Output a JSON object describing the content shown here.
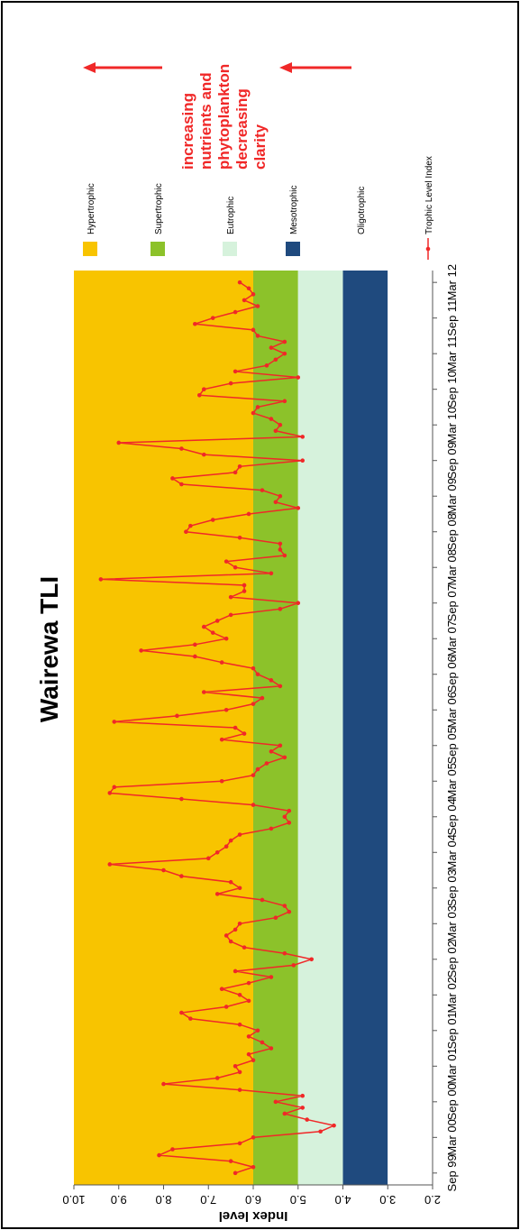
{
  "chart_data": {
    "type": "line",
    "title": "Wairewa TLI",
    "y_label": "Index level",
    "x": [
      "Sep 99",
      "Oct 99",
      "Nov 99",
      "Dec 99",
      "Jan 00",
      "Feb 00",
      "Mar 00",
      "Apr 00",
      "May 00",
      "Jun 00",
      "Jul 00",
      "Aug 00",
      "Sep 00",
      "Oct 00",
      "Nov 00",
      "Dec 00",
      "Jan 01",
      "Feb 01",
      "Mar 01",
      "Apr 01",
      "May 01",
      "Jun 01",
      "Jul 01",
      "Aug 01",
      "Sep 01",
      "Oct 01",
      "Nov 01",
      "Dec 01",
      "Jan 02",
      "Feb 02",
      "Mar 02",
      "Apr 02",
      "May 02",
      "Jun 02",
      "Jul 02",
      "Aug 02",
      "Sep 02",
      "Oct 02",
      "Nov 02",
      "Dec 02",
      "Jan 03",
      "Feb 03",
      "Mar 03",
      "Apr 03",
      "May 03",
      "Jun 03",
      "Jul 03",
      "Aug 03",
      "Sep 03",
      "Oct 03",
      "Nov 03",
      "Dec 03",
      "Jan 04",
      "Feb 04",
      "Mar 04",
      "Apr 04",
      "May 04",
      "Jun 04",
      "Jul 04",
      "Aug 04",
      "Sep 04",
      "Oct 04",
      "Nov 04",
      "Dec 04",
      "Jan 05",
      "Feb 05",
      "Mar 05",
      "Apr 05",
      "May 05",
      "Jun 05",
      "Jul 05",
      "Aug 05",
      "Sep 05",
      "Oct 05",
      "Nov 05",
      "Dec 05",
      "Jan 06",
      "Feb 06",
      "Mar 06",
      "Apr 06",
      "May 06",
      "Jun 06",
      "Jul 06",
      "Aug 06",
      "Sep 06",
      "Oct 06",
      "Nov 06",
      "Dec 06",
      "Jan 07",
      "Feb 07",
      "Mar 07",
      "Apr 07",
      "May 07",
      "Jun 07",
      "Jul 07",
      "Aug 07",
      "Sep 07",
      "Oct 07",
      "Nov 07",
      "Dec 07",
      "Jan 08",
      "Feb 08",
      "Mar 08",
      "Apr 08",
      "May 08",
      "Jun 08",
      "Jul 08",
      "Aug 08",
      "Sep 08",
      "Oct 08",
      "Nov 08",
      "Dec 08",
      "Jan 09",
      "Feb 09",
      "Mar 09",
      "Apr 09",
      "May 09",
      "Jun 09",
      "Jul 09",
      "Aug 09",
      "Sep 09",
      "Oct 09",
      "Nov 09",
      "Dec 09",
      "Jan 10",
      "Feb 10",
      "Mar 10",
      "Apr 10",
      "May 10",
      "Jun 10",
      "Jul 10",
      "Aug 10",
      "Sep 10",
      "Oct 10",
      "Nov 10",
      "Dec 10",
      "Jan 11",
      "Feb 11",
      "Mar 11",
      "Apr 11",
      "May 11",
      "Jun 11",
      "Jul 11",
      "Aug 11",
      "Sep 11",
      "Oct 11",
      "Nov 11",
      "Dec 11",
      "Jan 12",
      "Feb 12",
      "Mar 12"
    ],
    "series": [
      {
        "name": "Trophic Level Index",
        "color": "#f02828",
        "values": [
          6.4,
          6.0,
          6.5,
          8.1,
          7.8,
          6.3,
          6.0,
          4.5,
          4.2,
          4.8,
          5.3,
          4.9,
          5.5,
          4.9,
          6.3,
          8.0,
          6.8,
          6.3,
          6.4,
          6.0,
          6.1,
          5.6,
          5.8,
          6.1,
          5.9,
          6.3,
          7.4,
          7.6,
          6.6,
          6.1,
          6.3,
          6.7,
          6.1,
          5.6,
          6.4,
          5.1,
          4.7,
          5.3,
          6.2,
          6.5,
          6.6,
          6.4,
          6.3,
          5.5,
          5.2,
          5.3,
          5.8,
          6.8,
          6.3,
          6.5,
          7.6,
          8.0,
          9.2,
          7.0,
          6.8,
          6.6,
          6.5,
          6.3,
          5.6,
          5.2,
          5.3,
          5.2,
          6.0,
          7.6,
          9.2,
          9.1,
          6.7,
          6.0,
          5.9,
          5.7,
          5.3,
          5.6,
          5.4,
          6.7,
          6.2,
          6.4,
          9.1,
          7.7,
          6.6,
          6.0,
          5.8,
          7.1,
          5.4,
          5.6,
          5.9,
          6.0,
          6.7,
          7.3,
          8.5,
          7.3,
          6.6,
          6.9,
          7.1,
          6.8,
          6.5,
          5.4,
          5.0,
          6.5,
          6.2,
          6.2,
          9.4,
          5.6,
          6.4,
          6.6,
          5.3,
          5.4,
          5.4,
          6.3,
          7.5,
          7.4,
          6.9,
          6.1,
          5.0,
          5.5,
          5.4,
          5.8,
          7.6,
          7.8,
          6.4,
          6.3,
          4.9,
          7.1,
          7.6,
          9.0,
          4.9,
          5.5,
          5.4,
          5.6,
          6.0,
          5.9,
          5.3,
          7.2,
          7.1,
          6.5,
          5.0,
          6.4,
          5.7,
          5.5,
          5.3,
          5.6,
          5.3,
          5.9,
          6.0,
          7.3,
          6.9,
          6.4,
          5.9,
          6.2,
          6.0,
          6.1,
          6.3
        ]
      }
    ],
    "xlim": [
      "Jul 99",
      "May 12"
    ],
    "xticks": [
      "Sep 99",
      "Mar 00",
      "Sep 00",
      "Mar 01",
      "Sep 01",
      "Mar 02",
      "Sep 02",
      "Mar 03",
      "Sep 03",
      "Mar 04",
      "Sep 04",
      "Mar 05",
      "Sep 05",
      "Mar 06",
      "Sep 06",
      "Mar 07",
      "Sep 07",
      "Mar 08",
      "Sep 08",
      "Mar 09",
      "Sep 09",
      "Mar 10",
      "Sep 10",
      "Mar 11",
      "Sep 11",
      "Mar 12"
    ],
    "ylim": [
      2,
      10
    ],
    "yticks": [
      {
        "value": 2,
        "label": "2.0"
      },
      {
        "value": 3,
        "label": "3.0"
      },
      {
        "value": 4,
        "label": "4.0"
      },
      {
        "value": 5,
        "label": "5.0"
      },
      {
        "value": 6,
        "label": "6.0"
      },
      {
        "value": 7,
        "label": "7.0"
      },
      {
        "value": 8,
        "label": "8.0"
      },
      {
        "value": 9,
        "label": "9.0"
      },
      {
        "value": 10,
        "label": "10.0"
      }
    ],
    "bands": [
      {
        "name": "Hypertrophic",
        "color": "#f8c400",
        "from": 6,
        "to": 10
      },
      {
        "name": "Supertrophic",
        "color": "#8cc22a",
        "from": 5,
        "to": 6
      },
      {
        "name": "Eutrophic",
        "color": "#d6f2dc",
        "from": 4,
        "to": 5
      },
      {
        "name": "Mesotrophic",
        "color": "#1f4a7e",
        "from": 3,
        "to": 4
      },
      {
        "name": "Oligotrophic",
        "color": "#ffffff",
        "from": 2,
        "to": 3
      }
    ],
    "annotation": [
      "increasing",
      "nutrients and",
      "phytoplankton",
      "decreasing",
      "clarity"
    ]
  }
}
